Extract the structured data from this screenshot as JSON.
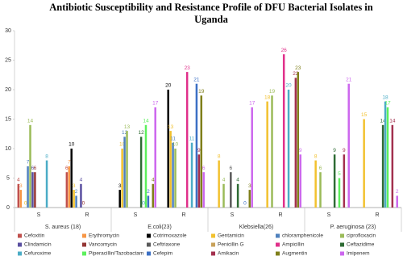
{
  "chart_data": {
    "type": "bar",
    "title": [
      "Antibiotic Susceptibility and Resistance Profile of DFU  Bacterial Isolates in",
      "Uganda"
    ],
    "categories": [
      "S",
      "R",
      "S",
      "R",
      "S",
      "R",
      "S",
      "R"
    ],
    "groups": [
      "S. aureus (18)",
      "E.coli(23)",
      "Klebsiella(26)",
      "P. aeruginosa (23)"
    ],
    "ylim": [
      0,
      30
    ],
    "yticks": [
      0,
      5,
      10,
      15,
      20,
      25,
      30
    ],
    "grid": false,
    "series": [
      {
        "name": "Cefoxitin",
        "color": "#c0504d",
        "values": [
          4,
          6,
          null,
          null,
          null,
          null,
          null,
          null
        ]
      },
      {
        "name": "Erythromycin",
        "color": "#f79646",
        "values": [
          3,
          7,
          null,
          null,
          null,
          null,
          null,
          null
        ]
      },
      {
        "name": "Cotrimoxazole",
        "color": "#000000",
        "values": [
          null,
          10,
          3,
          20,
          null,
          null,
          null,
          null
        ]
      },
      {
        "name": "Gentamicin",
        "color": "#f2c12e",
        "values": [
          0,
          3,
          10,
          13,
          8,
          18,
          8,
          15
        ]
      },
      {
        "name": "chloramphenicole",
        "color": "#4f81bd",
        "values": [
          7,
          2,
          12,
          11,
          null,
          null,
          null,
          null
        ]
      },
      {
        "name": "ciprofloxacin",
        "color": "#9bbb59",
        "values": [
          14,
          null,
          13,
          10,
          4,
          19,
          6,
          null
        ]
      },
      {
        "name": "Clindamicin",
        "color": "#5a4fa0",
        "values": [
          6,
          4,
          null,
          null,
          null,
          null,
          null,
          null
        ]
      },
      {
        "name": "Vancomycin",
        "color": "#943634",
        "values": [
          6,
          0,
          null,
          null,
          null,
          null,
          null,
          null
        ]
      },
      {
        "name": "Ceftriaxone",
        "color": "#595959",
        "values": [
          null,
          null,
          null,
          null,
          6,
          null,
          null,
          null
        ]
      },
      {
        "name": "Penicillin G",
        "color": "#c8a15a",
        "values": [
          null,
          null,
          null,
          null,
          null,
          null,
          null,
          null
        ]
      },
      {
        "name": "Ampicillin",
        "color": "#e0308a",
        "values": [
          null,
          null,
          null,
          23,
          null,
          26,
          null,
          null
        ]
      },
      {
        "name": "Ceftazidime",
        "color": "#2e6b34",
        "values": [
          null,
          null,
          12,
          null,
          4,
          null,
          9,
          14
        ]
      },
      {
        "name": "Cefuroxime",
        "color": "#4bacc6",
        "values": [
          8,
          null,
          0,
          11,
          null,
          20,
          null,
          18
        ]
      },
      {
        "name": "Piperacillin/Tazobactam",
        "color": "#5cf05c",
        "values": [
          null,
          null,
          14,
          null,
          null,
          null,
          5,
          17
        ]
      },
      {
        "name": "Cefepim",
        "color": "#3b6fc4",
        "values": [
          null,
          null,
          2,
          21,
          0,
          null,
          null,
          null
        ]
      },
      {
        "name": "Amikacin",
        "color": "#a3304e",
        "values": [
          null,
          null,
          null,
          9,
          null,
          22,
          9,
          14
        ]
      },
      {
        "name": "Augmentin",
        "color": "#7f7f1a",
        "values": [
          null,
          null,
          4,
          19,
          3,
          23,
          null,
          null
        ]
      },
      {
        "name": "Imipenem",
        "color": "#cc66ee",
        "values": [
          null,
          null,
          17,
          6,
          17,
          9,
          21,
          2
        ]
      }
    ]
  }
}
